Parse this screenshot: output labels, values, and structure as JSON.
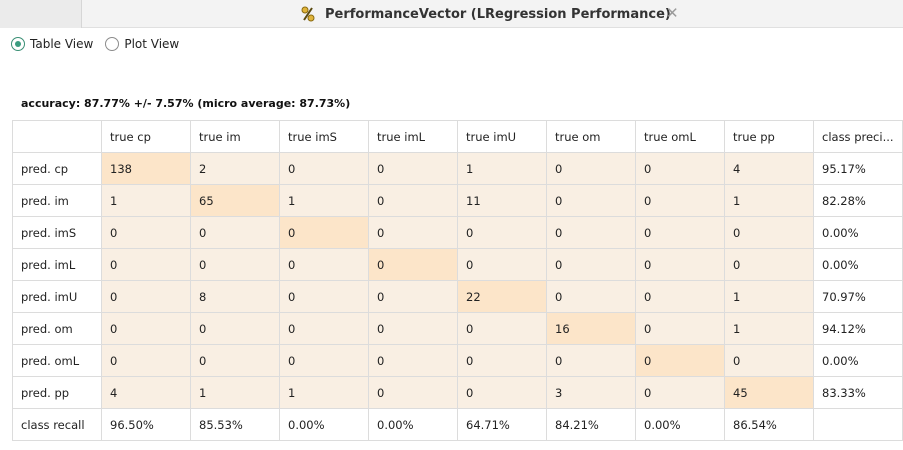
{
  "tab": {
    "title": "PerformanceVector (LRegression Performance)",
    "icon": "performance-vector-icon",
    "close": "✕"
  },
  "views": [
    {
      "label": "Table View",
      "selected": true
    },
    {
      "label": "Plot View",
      "selected": false
    }
  ],
  "accuracy": "accuracy: 87.77% +/- 7.57% (micro average: 87.73%)",
  "matrix": {
    "columns": [
      "true cp",
      "true im",
      "true imS",
      "true imL",
      "true imU",
      "true om",
      "true omL",
      "true pp",
      "class preci..."
    ],
    "rows": [
      {
        "label": "pred. cp",
        "values": [
          "138",
          "2",
          "0",
          "0",
          "1",
          "0",
          "0",
          "4",
          "95.17%"
        ]
      },
      {
        "label": "pred. im",
        "values": [
          "1",
          "65",
          "1",
          "0",
          "11",
          "0",
          "0",
          "1",
          "82.28%"
        ]
      },
      {
        "label": "pred. imS",
        "values": [
          "0",
          "0",
          "0",
          "0",
          "0",
          "0",
          "0",
          "0",
          "0.00%"
        ]
      },
      {
        "label": "pred. imL",
        "values": [
          "0",
          "0",
          "0",
          "0",
          "0",
          "0",
          "0",
          "0",
          "0.00%"
        ]
      },
      {
        "label": "pred. imU",
        "values": [
          "0",
          "8",
          "0",
          "0",
          "22",
          "0",
          "0",
          "1",
          "70.97%"
        ]
      },
      {
        "label": "pred. om",
        "values": [
          "0",
          "0",
          "0",
          "0",
          "0",
          "16",
          "0",
          "1",
          "94.12%"
        ]
      },
      {
        "label": "pred. omL",
        "values": [
          "0",
          "0",
          "0",
          "0",
          "0",
          "0",
          "0",
          "0",
          "0.00%"
        ]
      },
      {
        "label": "pred. pp",
        "values": [
          "4",
          "1",
          "1",
          "0",
          "0",
          "3",
          "0",
          "45",
          "83.33%"
        ]
      }
    ],
    "recall": {
      "label": "class recall",
      "values": [
        "96.50%",
        "85.53%",
        "0.00%",
        "0.00%",
        "64.71%",
        "84.21%",
        "0.00%",
        "86.54%",
        ""
      ]
    }
  },
  "colors": {
    "diagonal": "#fce5c9",
    "cell": "#f9efe3",
    "radio_accent": "#3a9c7f"
  }
}
